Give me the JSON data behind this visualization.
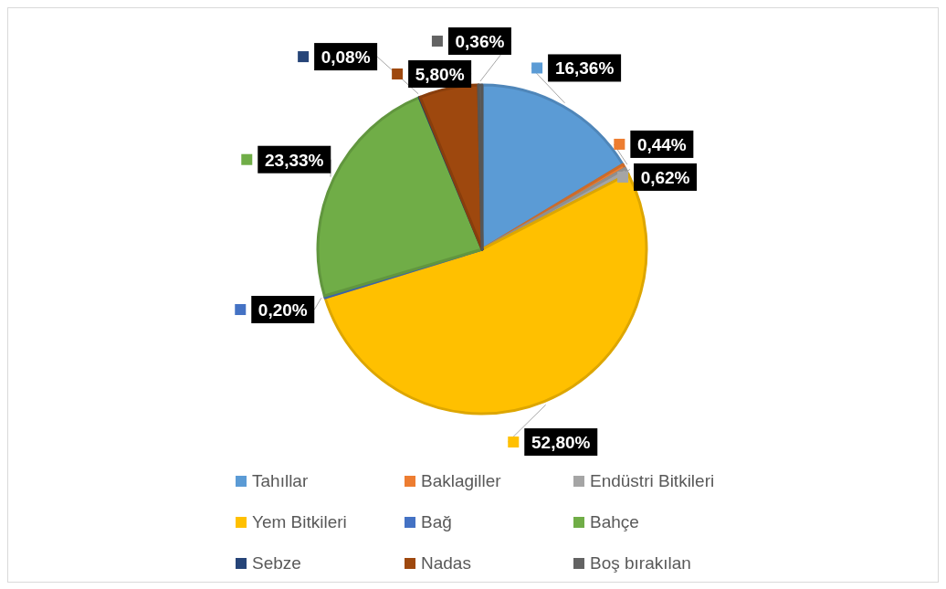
{
  "chart_data": {
    "type": "pie",
    "categories": [
      "Tahıllar",
      "Baklagiller",
      "Endüstri Bitkileri",
      "Yem Bitkileri",
      "Bağ",
      "Bahçe",
      "Sebze",
      "Nadas",
      "Boş bırakılan"
    ],
    "values": [
      16.36,
      0.44,
      0.62,
      52.8,
      0.2,
      23.33,
      0.08,
      5.8,
      0.36
    ],
    "colors": [
      "#5b9bd5",
      "#ed7d31",
      "#a5a5a5",
      "#ffc000",
      "#4472c4",
      "#70ad47",
      "#264478",
      "#9e480e",
      "#636363"
    ],
    "value_labels": [
      "16,36%",
      "0,44%",
      "0,62%",
      "52,80%",
      "0,20%",
      "23,33%",
      "0,08%",
      "5,80%",
      "0,36%"
    ],
    "legend": "bottom"
  }
}
